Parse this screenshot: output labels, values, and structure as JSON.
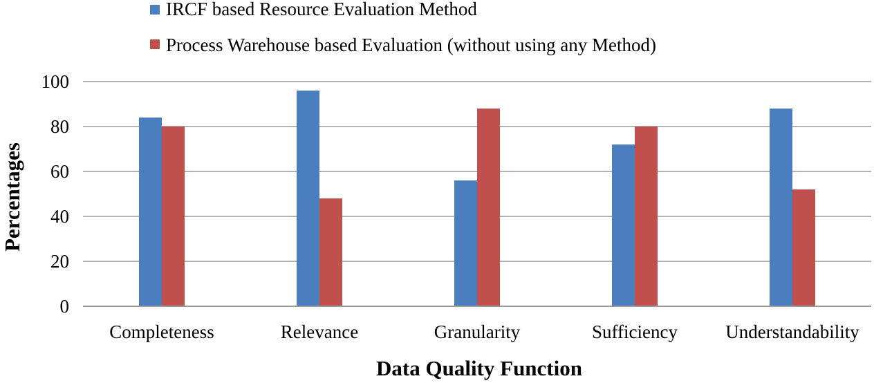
{
  "chart_data": {
    "type": "bar",
    "categories": [
      "Completeness",
      "Relevance",
      "Granularity",
      "Sufficiency",
      "Understandability"
    ],
    "series": [
      {
        "name": "IRCF based Resource Evaluation Method",
        "values": [
          84,
          96,
          56,
          72,
          88
        ],
        "color": "#4a7ebf"
      },
      {
        "name": "Process Warehouse based Evaluation (without using any Method)",
        "values": [
          80,
          48,
          88,
          80,
          52
        ],
        "color": "#c0504d"
      }
    ],
    "title": "",
    "xlabel": "Data Quality Function",
    "ylabel": "Percentages",
    "ylim": [
      0,
      100
    ],
    "yticks": [
      "0",
      "20",
      "40",
      "60",
      "80",
      "100"
    ],
    "grid": true,
    "legend_position": "top"
  }
}
